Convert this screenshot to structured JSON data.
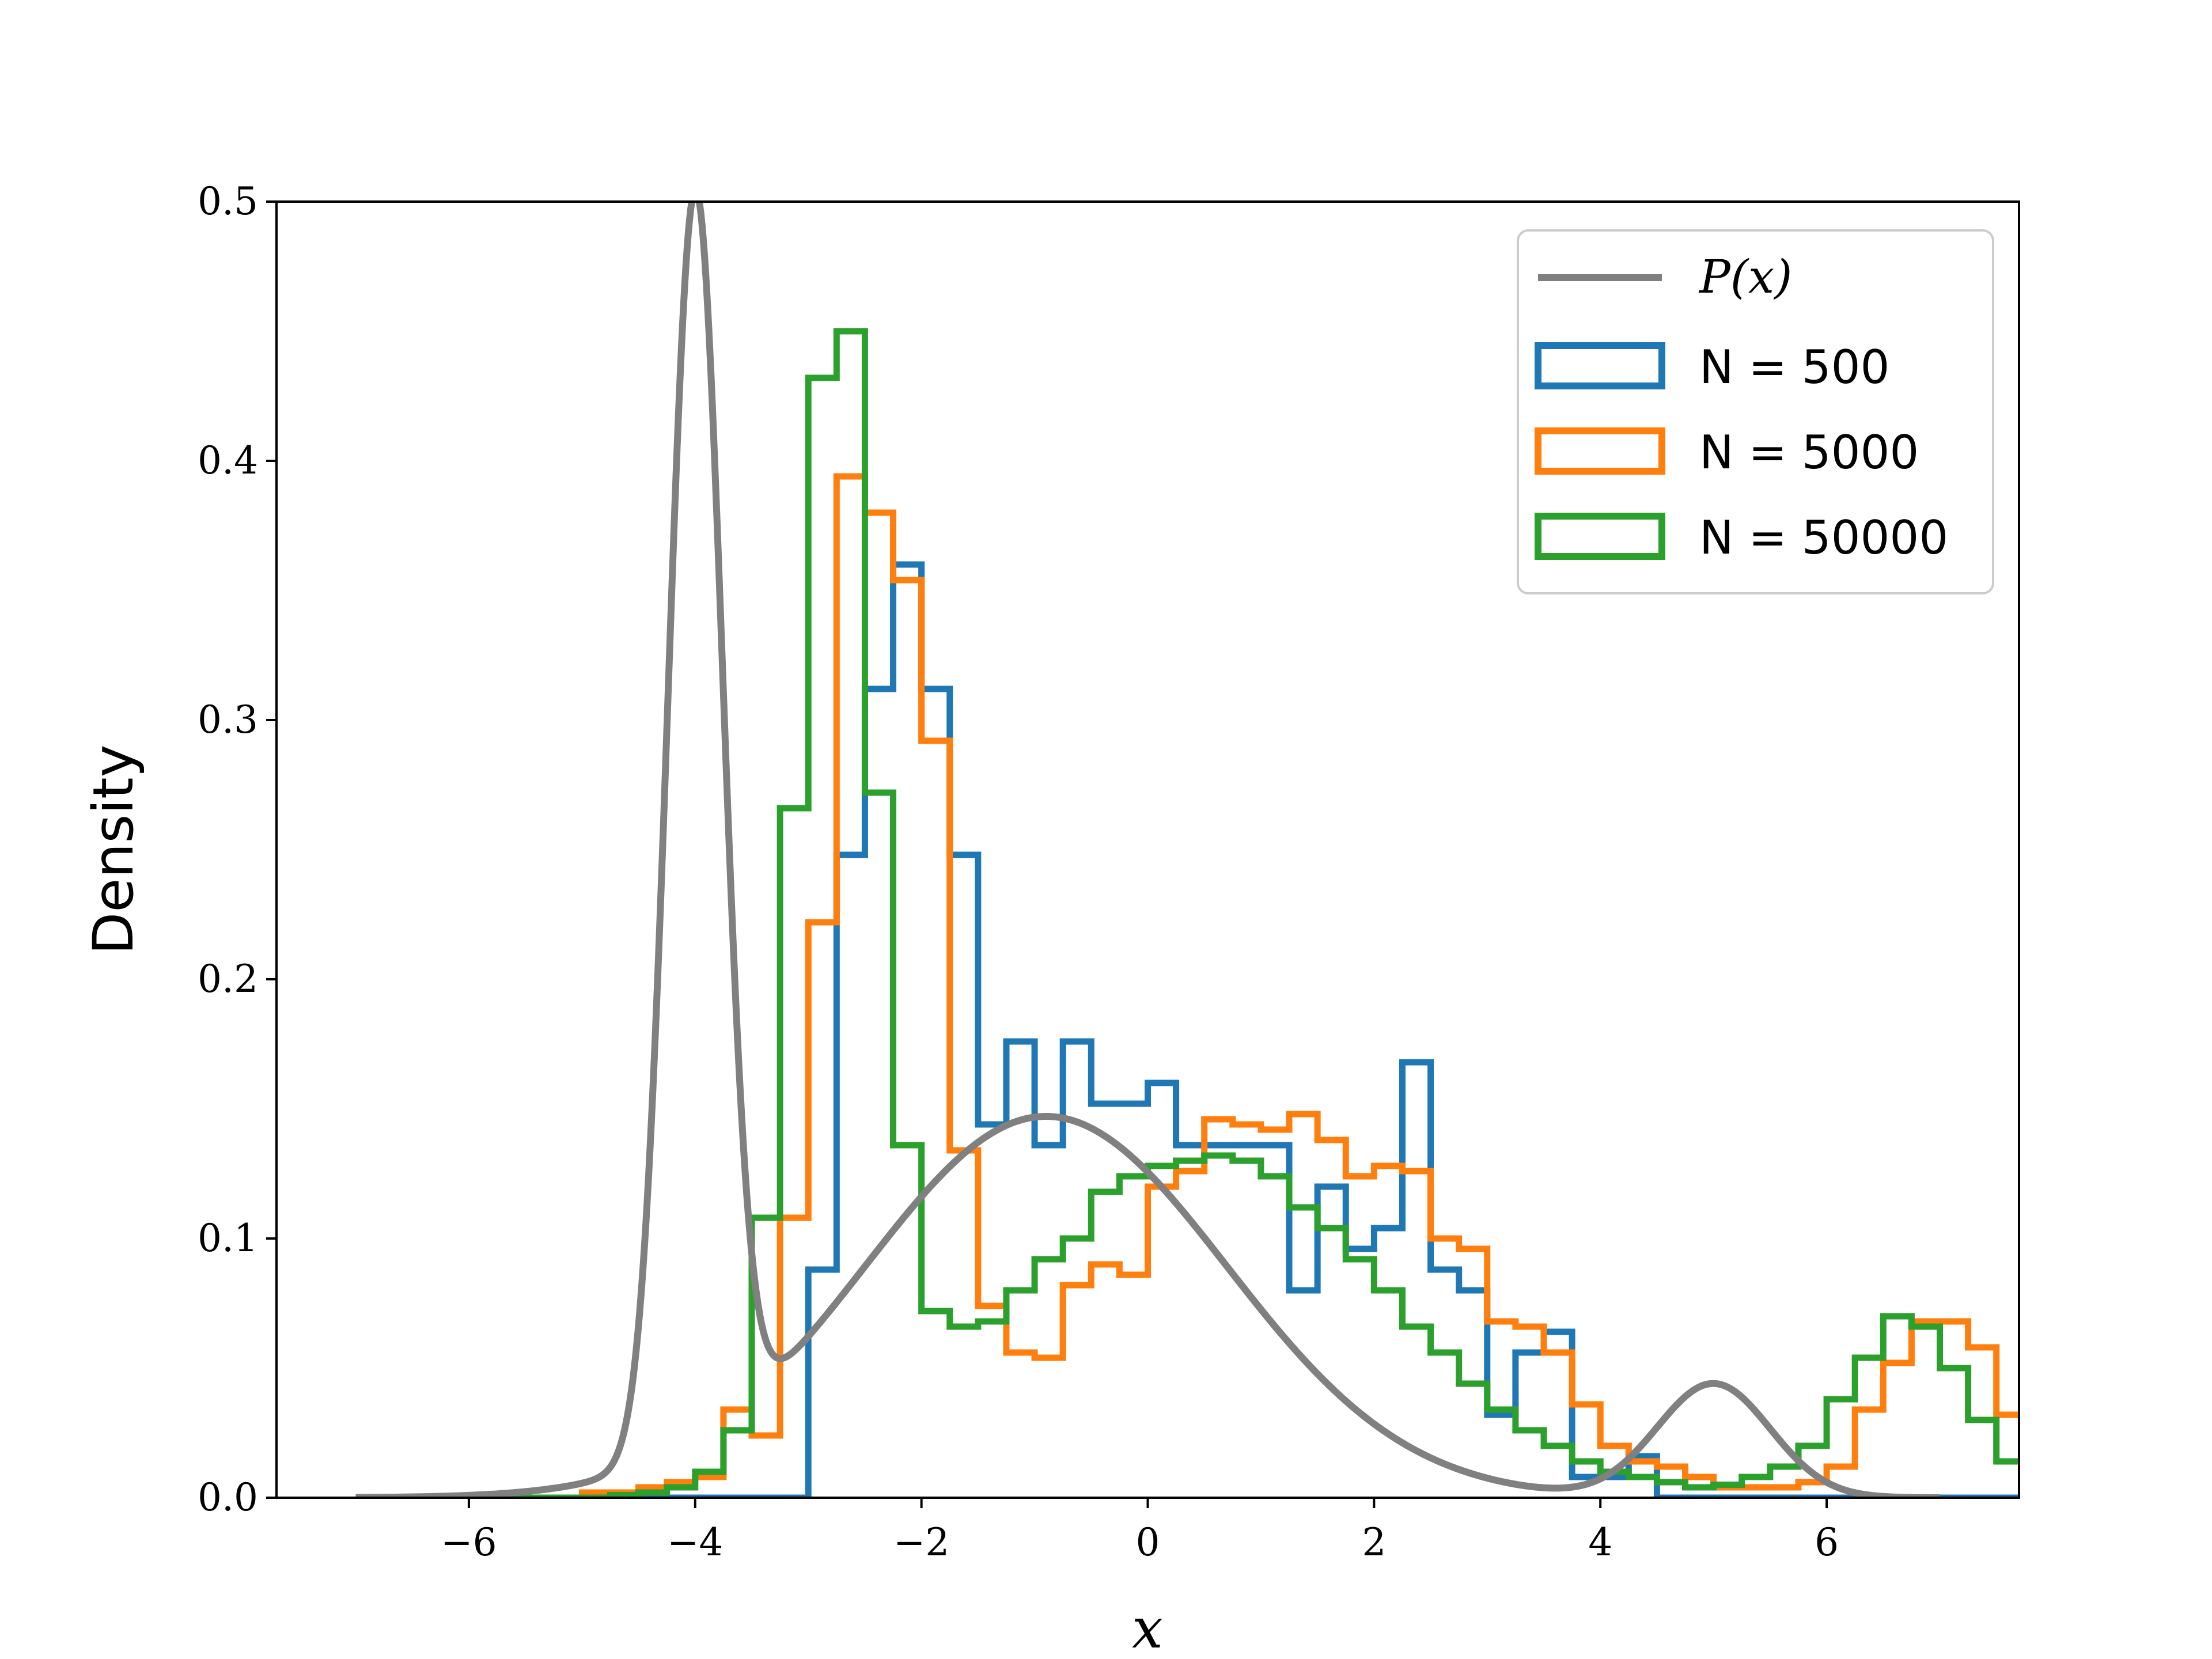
{
  "chart_data": {
    "type": "line",
    "xlabel": "x",
    "ylabel": "Density",
    "xlim": [
      -7.7,
      7.7
    ],
    "ylim": [
      0,
      0.5
    ],
    "x_ticks": [
      -6,
      -4,
      -2,
      0,
      2,
      4,
      6
    ],
    "x_tick_labels": [
      "−6",
      "−4",
      "−2",
      "0",
      "2",
      "4",
      "6"
    ],
    "y_ticks": [
      0,
      0.1,
      0.2,
      0.3,
      0.4,
      0.5
    ],
    "y_tick_labels": [
      "0.0",
      "0.1",
      "0.2",
      "0.3",
      "0.4",
      "0.5"
    ],
    "grid": false,
    "legend_position": "top-right",
    "pdf": {
      "label": "P(x)",
      "color": "#808080",
      "components": [
        {
          "weight": 0.29,
          "mean": -4.0,
          "sd": 0.24
        },
        {
          "weight": 0.59,
          "mean": -0.9,
          "sd": 1.6
        },
        {
          "weight": 0.055,
          "mean": 5.0,
          "sd": 0.5
        }
      ],
      "x_range": [
        -7,
        7
      ]
    },
    "histograms": {
      "bin_edges_start": -7.0,
      "bin_width": 0.25,
      "series": [
        {
          "name": "N = 500",
          "color": "#1f77b4",
          "values": [
            0,
            0,
            0,
            0,
            0,
            0,
            0,
            0,
            0,
            0,
            0,
            0,
            0,
            0,
            0,
            0,
            0.088,
            0.248,
            0.312,
            0.36,
            0.312,
            0.248,
            0.144,
            0.176,
            0.136,
            0.176,
            0.152,
            0.152,
            0.16,
            0.136,
            0.136,
            0.136,
            0.136,
            0.08,
            0.12,
            0.096,
            0.104,
            0.168,
            0.088,
            0.08,
            0.032,
            0.056,
            0.064,
            0.008,
            0.008,
            0.016,
            0,
            0,
            0,
            0,
            0,
            0,
            0,
            0,
            0,
            0,
            0,
            0,
            0,
            0,
            0,
            0,
            0,
            0,
            0,
            0
          ]
        },
        {
          "name": "N = 5000",
          "color": "#ff7f0e",
          "values": [
            0,
            0,
            0,
            0,
            0,
            0,
            0,
            0,
            0.002,
            0.002,
            0.004,
            0.006,
            0.008,
            0.034,
            0.024,
            0.108,
            0.222,
            0.394,
            0.38,
            0.354,
            0.292,
            0.134,
            0.074,
            0.056,
            0.054,
            0.082,
            0.09,
            0.086,
            0.12,
            0.126,
            0.146,
            0.144,
            0.142,
            0.148,
            0.138,
            0.124,
            0.128,
            0.126,
            0.1,
            0.096,
            0.068,
            0.066,
            0.056,
            0.036,
            0.02,
            0.014,
            0.012,
            0.008,
            0.004,
            0.004,
            0.004,
            0.006,
            0.012,
            0.034,
            0.052,
            0.068,
            0.068,
            0.058,
            0.032,
            0.02,
            0.006,
            0.002,
            0,
            0,
            0,
            0
          ]
        },
        {
          "name": "N = 50000",
          "color": "#2ca02c",
          "values": [
            0,
            0,
            0,
            0,
            0,
            0,
            0,
            0,
            0,
            0.001,
            0.002,
            0.004,
            0.01,
            0.026,
            0.108,
            0.266,
            0.432,
            0.45,
            0.272,
            0.136,
            0.072,
            0.066,
            0.068,
            0.08,
            0.092,
            0.1,
            0.118,
            0.124,
            0.128,
            0.13,
            0.132,
            0.13,
            0.124,
            0.112,
            0.104,
            0.092,
            0.08,
            0.066,
            0.056,
            0.044,
            0.034,
            0.026,
            0.02,
            0.014,
            0.01,
            0.008,
            0.006,
            0.004,
            0.005,
            0.008,
            0.012,
            0.02,
            0.038,
            0.054,
            0.07,
            0.066,
            0.05,
            0.03,
            0.014,
            0.006,
            0.002,
            0,
            0,
            0,
            0,
            0
          ]
        }
      ]
    }
  }
}
